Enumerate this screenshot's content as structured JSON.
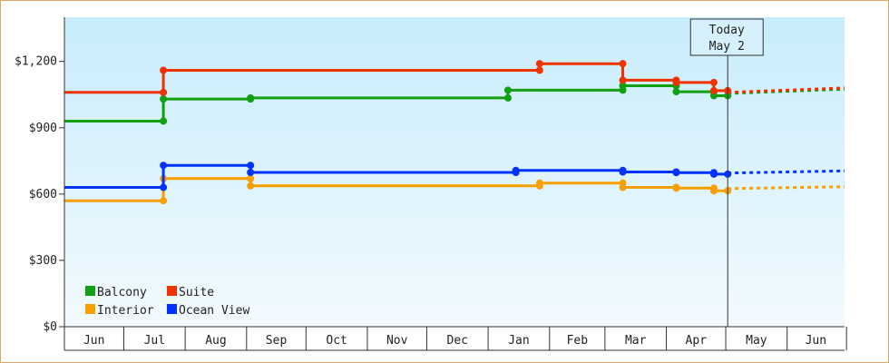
{
  "chart_data": {
    "type": "line",
    "title": "",
    "xlabel": "",
    "ylabel": "",
    "y_ticks": [
      "$0",
      "$300",
      "$600",
      "$900",
      "$1,200"
    ],
    "ylim": [
      0,
      1400
    ],
    "x_range": [
      "2018-06-01",
      "2019-06-30"
    ],
    "months": [
      "Jun",
      "Jul",
      "Aug",
      "Sep",
      "Oct",
      "Nov",
      "Dec",
      "Jan",
      "Feb",
      "Mar",
      "Apr",
      "May",
      "Jun"
    ],
    "today_marker": {
      "line1": "Today",
      "line2": "May 2",
      "date": "2019-05-02"
    },
    "legend_position": "bottom-left",
    "grid": false,
    "series": [
      {
        "name": "Balcony",
        "color": "#11a011",
        "points": [
          {
            "date": "2018-06-01",
            "value": 930
          },
          {
            "date": "2018-07-21",
            "value": 930
          },
          {
            "date": "2018-07-21",
            "value": 1030
          },
          {
            "date": "2018-09-03",
            "value": 1030
          },
          {
            "date": "2018-09-03",
            "value": 1035
          },
          {
            "date": "2019-01-11",
            "value": 1035
          },
          {
            "date": "2019-01-11",
            "value": 1070
          },
          {
            "date": "2019-03-10",
            "value": 1070
          },
          {
            "date": "2019-03-10",
            "value": 1090
          },
          {
            "date": "2019-04-06",
            "value": 1090
          },
          {
            "date": "2019-04-06",
            "value": 1063
          },
          {
            "date": "2019-04-25",
            "value": 1063
          },
          {
            "date": "2019-04-25",
            "value": 1045
          },
          {
            "date": "2019-05-02",
            "value": 1045
          }
        ],
        "forecast": [
          {
            "date": "2019-05-02",
            "value": 1055
          },
          {
            "date": "2019-06-30",
            "value": 1075
          }
        ]
      },
      {
        "name": "Suite",
        "color": "#ee3300",
        "points": [
          {
            "date": "2018-06-01",
            "value": 1060
          },
          {
            "date": "2018-07-21",
            "value": 1060
          },
          {
            "date": "2018-07-21",
            "value": 1160
          },
          {
            "date": "2019-01-27",
            "value": 1160
          },
          {
            "date": "2019-01-27",
            "value": 1190
          },
          {
            "date": "2019-03-10",
            "value": 1190
          },
          {
            "date": "2019-03-10",
            "value": 1115
          },
          {
            "date": "2019-04-06",
            "value": 1115
          },
          {
            "date": "2019-04-06",
            "value": 1105
          },
          {
            "date": "2019-04-25",
            "value": 1105
          },
          {
            "date": "2019-04-25",
            "value": 1068
          },
          {
            "date": "2019-05-02",
            "value": 1068
          }
        ],
        "forecast": [
          {
            "date": "2019-05-02",
            "value": 1060
          },
          {
            "date": "2019-06-30",
            "value": 1080
          }
        ]
      },
      {
        "name": "Interior",
        "color": "#f5a000",
        "points": [
          {
            "date": "2018-06-01",
            "value": 570
          },
          {
            "date": "2018-07-21",
            "value": 570
          },
          {
            "date": "2018-07-21",
            "value": 670
          },
          {
            "date": "2018-09-03",
            "value": 670
          },
          {
            "date": "2018-09-03",
            "value": 637
          },
          {
            "date": "2019-01-27",
            "value": 637
          },
          {
            "date": "2019-01-27",
            "value": 650
          },
          {
            "date": "2019-03-10",
            "value": 650
          },
          {
            "date": "2019-03-10",
            "value": 630
          },
          {
            "date": "2019-04-06",
            "value": 630
          },
          {
            "date": "2019-04-06",
            "value": 627
          },
          {
            "date": "2019-04-25",
            "value": 627
          },
          {
            "date": "2019-04-25",
            "value": 615
          },
          {
            "date": "2019-05-02",
            "value": 615
          }
        ],
        "forecast": [
          {
            "date": "2019-05-02",
            "value": 625
          },
          {
            "date": "2019-06-30",
            "value": 633
          }
        ]
      },
      {
        "name": "Ocean View",
        "color": "#0033ff",
        "points": [
          {
            "date": "2018-06-01",
            "value": 630
          },
          {
            "date": "2018-07-21",
            "value": 630
          },
          {
            "date": "2018-07-21",
            "value": 730
          },
          {
            "date": "2018-09-03",
            "value": 730
          },
          {
            "date": "2018-09-03",
            "value": 698
          },
          {
            "date": "2019-01-15",
            "value": 698
          },
          {
            "date": "2019-01-15",
            "value": 707
          },
          {
            "date": "2019-03-10",
            "value": 707
          },
          {
            "date": "2019-03-10",
            "value": 700
          },
          {
            "date": "2019-04-06",
            "value": 700
          },
          {
            "date": "2019-04-06",
            "value": 697
          },
          {
            "date": "2019-04-25",
            "value": 697
          },
          {
            "date": "2019-04-25",
            "value": 690
          },
          {
            "date": "2019-05-02",
            "value": 690
          }
        ],
        "forecast": [
          {
            "date": "2019-05-02",
            "value": 695
          },
          {
            "date": "2019-06-30",
            "value": 705
          }
        ]
      }
    ]
  }
}
